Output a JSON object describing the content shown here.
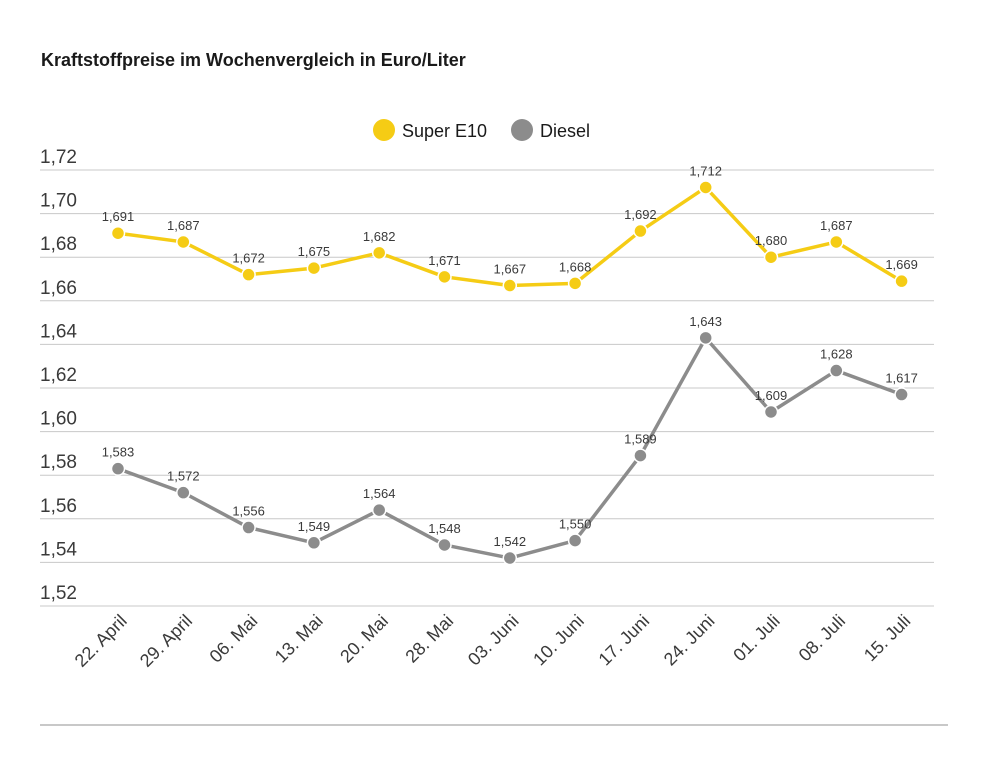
{
  "chart_data": {
    "type": "line",
    "title": "Kraftstoffpreise im Wochenvergleich in Euro/Liter",
    "categories": [
      "22. April",
      "29. April",
      "06. Mai",
      "13. Mai",
      "20. Mai",
      "28. Mai",
      "03. Juni",
      "10. Juni",
      "17. Juni",
      "24. Juni",
      "01. Juli",
      "08. Juli",
      "15. Juli"
    ],
    "ylim": [
      1.52,
      1.72
    ],
    "yticks": [
      1.52,
      1.54,
      1.56,
      1.58,
      1.6,
      1.62,
      1.64,
      1.66,
      1.68,
      1.7,
      1.72
    ],
    "ytick_labels": [
      "1,52",
      "1,54",
      "1,56",
      "1,58",
      "1,60",
      "1,62",
      "1,64",
      "1,66",
      "1,68",
      "1,70",
      "1,72"
    ],
    "grid": true,
    "legend_position": "top-center",
    "series": [
      {
        "name": "Super E10",
        "color": "#f5cc15",
        "values": [
          1.691,
          1.687,
          1.672,
          1.675,
          1.682,
          1.671,
          1.667,
          1.668,
          1.692,
          1.712,
          1.68,
          1.687,
          1.669
        ],
        "labels": [
          "1,691",
          "1,687",
          "1,672",
          "1,675",
          "1,682",
          "1,671",
          "1,667",
          "1,668",
          "1,692",
          "1,712",
          "1,680",
          "1,687",
          "1,669"
        ]
      },
      {
        "name": "Diesel",
        "color": "#8c8c8c",
        "values": [
          1.583,
          1.572,
          1.556,
          1.549,
          1.564,
          1.548,
          1.542,
          1.55,
          1.589,
          1.643,
          1.609,
          1.628,
          1.617
        ],
        "labels": [
          "1,583",
          "1,572",
          "1,556",
          "1,549",
          "1,564",
          "1,548",
          "1,542",
          "1,550",
          "1,589",
          "1,643",
          "1,609",
          "1,628",
          "1,617"
        ]
      }
    ]
  }
}
